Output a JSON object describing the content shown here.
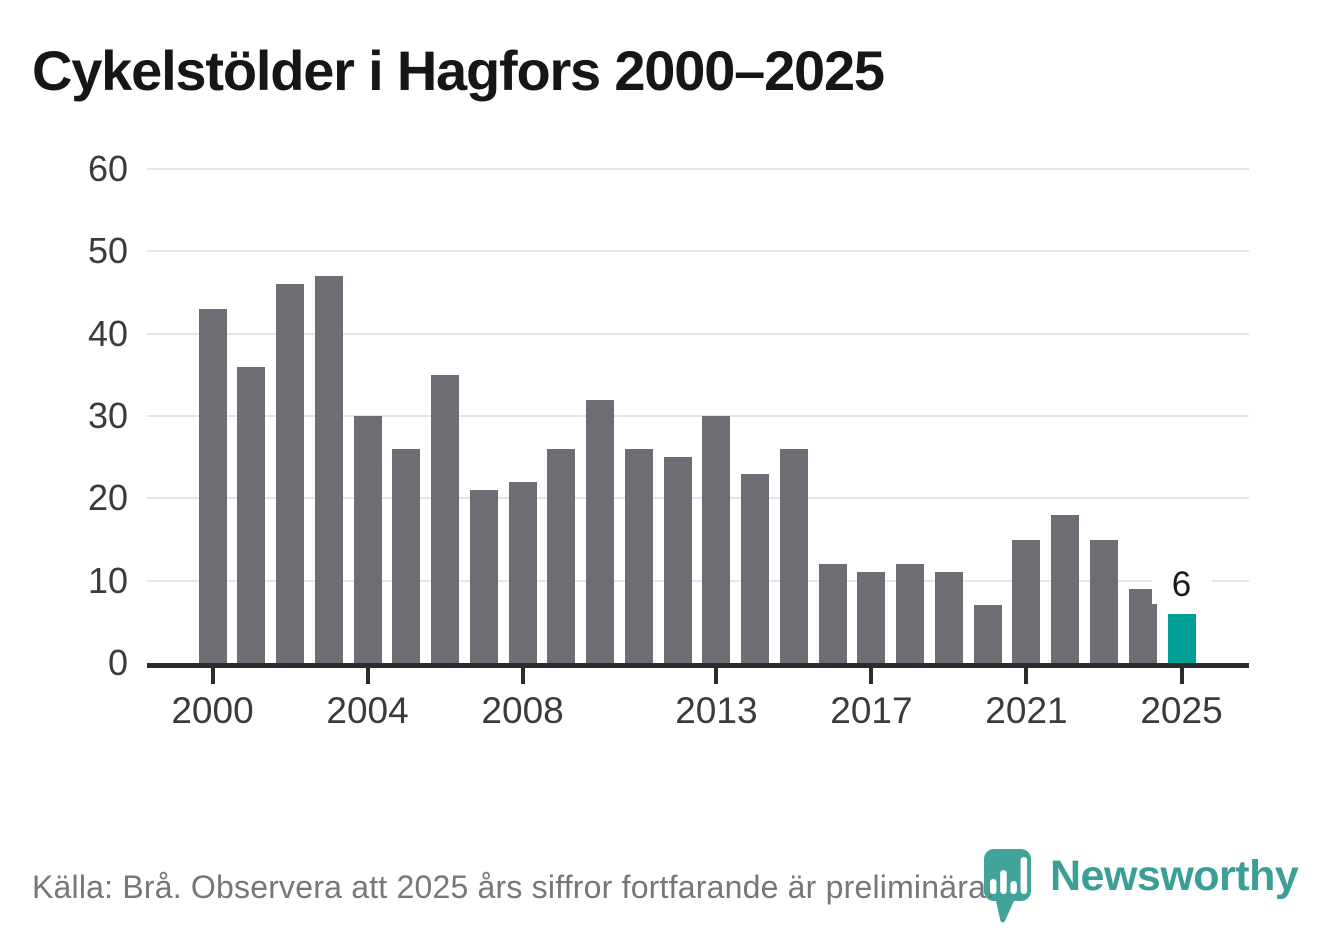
{
  "title": "Cykelstölder i Hagfors 2000–2025",
  "chart_data": {
    "type": "bar",
    "title": "Cykelstölder i Hagfors 2000–2025",
    "x": [
      2000,
      2001,
      2002,
      2003,
      2004,
      2005,
      2006,
      2007,
      2008,
      2009,
      2010,
      2011,
      2012,
      2013,
      2014,
      2015,
      2016,
      2017,
      2018,
      2019,
      2020,
      2021,
      2022,
      2023,
      2024,
      2025
    ],
    "values": [
      43,
      36,
      46,
      47,
      30,
      26,
      35,
      21,
      22,
      26,
      32,
      26,
      25,
      30,
      23,
      26,
      12,
      11,
      12,
      11,
      7,
      15,
      18,
      15,
      9,
      6
    ],
    "ylim": [
      0,
      60
    ],
    "yticks": [
      0,
      10,
      20,
      30,
      40,
      50,
      60
    ],
    "xticks": [
      "2000",
      "2004",
      "2008",
      "2013",
      "2017",
      "2021",
      "2025"
    ],
    "xtick_years": [
      2000,
      2004,
      2008,
      2013,
      2017,
      2021,
      2025
    ],
    "grid": "horizontal",
    "legend": "none",
    "bar_color": "#6e6d73",
    "highlight": {
      "year": 2025,
      "value": 6,
      "label": "6",
      "color": "#00a096"
    },
    "xlabel": "",
    "ylabel": ""
  },
  "footer": {
    "source_note": "Källa: Brå. Observera att 2025 års siffror fortfarande är preliminära.",
    "brand": "Newsworthy"
  },
  "colors": {
    "title_text": "#161616",
    "axis_text": "#3b3b3b",
    "axis_line": "#2c2c2c",
    "gridline": "#e4e4e4",
    "bar_gray": "#6e6d73",
    "bar_teal": "#00a096",
    "footer_text": "#77767a",
    "logo_teal": "#42a39b",
    "logo_text_teal": "#3b9f97"
  }
}
